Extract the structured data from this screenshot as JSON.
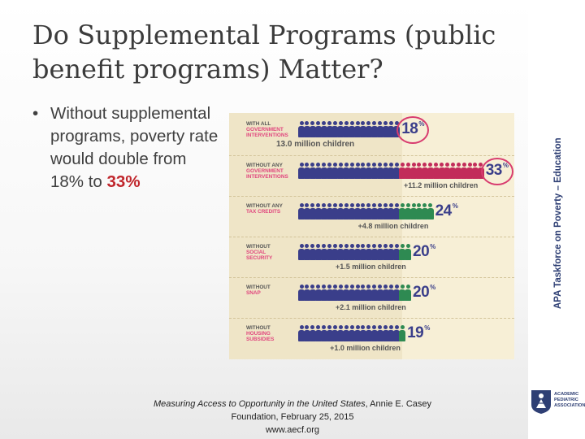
{
  "title": "Do Supplemental Programs (public benefit programs) Matter?",
  "bullet": {
    "text": "Without supplemental programs, poverty rate would double from 18% to ",
    "highlight": "33%"
  },
  "infographic": {
    "colors": {
      "person_blue": "#3a3e8a",
      "person_green": "#2e8a52",
      "person_red": "#c22c5a",
      "accent_pink": "#e0457d"
    },
    "rows": [
      {
        "label_lines": [
          "WITH ALL",
          "GOVERNMENT",
          "INTERVENTIONS"
        ],
        "pct": "18",
        "children": "13.0 million children",
        "blue": 18,
        "extra": 0,
        "circled": true
      },
      {
        "label_lines": [
          "WITHOUT ANY",
          "GOVERNMENT",
          "INTERVENTIONS"
        ],
        "pct": "33",
        "children": "+11.2 million children",
        "blue": 18,
        "extra": 15,
        "circled": true
      },
      {
        "label_lines": [
          "WITHOUT ANY",
          "TAX CREDITS"
        ],
        "pct": "24",
        "children": "+4.8 million children",
        "blue": 18,
        "extra": 6,
        "circled": false
      },
      {
        "label_lines": [
          "WITHOUT",
          "SOCIAL",
          "SECURITY"
        ],
        "pct": "20",
        "children": "+1.5 million children",
        "blue": 18,
        "extra": 2,
        "circled": false
      },
      {
        "label_lines": [
          "WITHOUT",
          "SNAP"
        ],
        "pct": "20",
        "children": "+2.1 million children",
        "blue": 18,
        "extra": 2,
        "circled": false
      },
      {
        "label_lines": [
          "WITHOUT",
          "HOUSING",
          "SUBSIDIES"
        ],
        "pct": "19",
        "children": "+1.0 million children",
        "blue": 18,
        "extra": 1,
        "circled": false
      }
    ]
  },
  "citation": {
    "italic": "Measuring Access to Opportunity in the United States",
    "rest": ", Annie E. Casey Foundation, February 25, 2015",
    "url": "www.aecf.org"
  },
  "sidebar": {
    "vertical_text": "APA Taskforce on Poverty – Education",
    "logo_text": "Academic Pediatric Association"
  }
}
